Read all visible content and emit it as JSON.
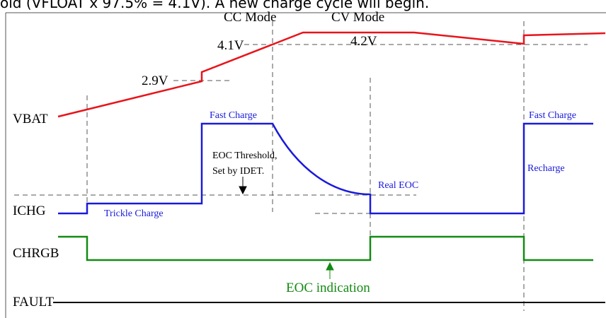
{
  "header": {
    "text": "old (VFLOAT x 97.5% = 4.1V). A new charge cycle will begin."
  },
  "modes": {
    "cc": "CC Mode",
    "cv": "CV Mode"
  },
  "voltages": {
    "v41": "4.1V",
    "v42": "4.2V",
    "v29": "2.9V"
  },
  "signals": {
    "vbat": "VBAT",
    "ichg": "ICHG",
    "chrgb": "CHRGB",
    "fault": "FAULT"
  },
  "annotations": {
    "fast_charge_1": "Fast Charge",
    "fast_charge_2": "Fast Charge",
    "eoc_threshold_1": "EOC Threshold,",
    "eoc_threshold_2": "Set by IDET.",
    "real_eoc": "Real EOC",
    "recharge": "Recharge",
    "trickle": "Trickle Charge",
    "eoc_indication": "EOC indication"
  }
}
